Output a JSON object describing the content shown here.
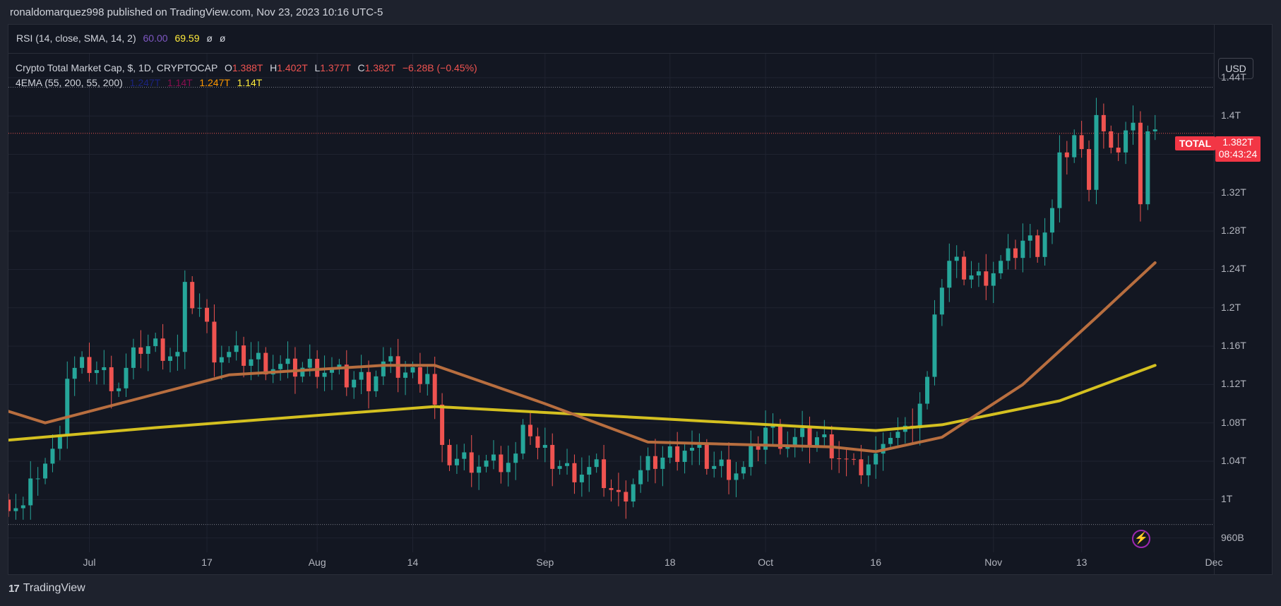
{
  "header": {
    "published_line": "ronaldomarquez998 published on TradingView.com, Nov 23, 2023 10:16 UTC-5"
  },
  "rsi": {
    "label": "RSI (14, close, SMA, 14, 2)",
    "value1": "60.00",
    "value2": "69.59",
    "empty1": "ø",
    "empty2": "ø",
    "color1": "#7e57c2",
    "color2": "#ffeb3b"
  },
  "legend": {
    "symbol": "Crypto Total Market Cap, $, 1D, CRYPTOCAP",
    "o_label": "O",
    "o_value": "1.388T",
    "h_label": "H",
    "h_value": "1.402T",
    "l_label": "L",
    "l_value": "1.377T",
    "c_label": "C",
    "c_value": "1.382T",
    "change": "−6.28B (−0.45%)",
    "ema_label": "4EMA (55, 200, 55, 200)",
    "ema_values": [
      "1.247T",
      "1.14T",
      "1.247T",
      "1.14T"
    ],
    "ema_colors": [
      "#1a237e",
      "#880e4f",
      "#ff9800",
      "#ffeb3b"
    ]
  },
  "price_axis": {
    "currency": "USD",
    "ticks": [
      "1.44T",
      "1.4T",
      "1.36T",
      "1.32T",
      "1.28T",
      "1.24T",
      "1.2T",
      "1.16T",
      "1.12T",
      "1.08T",
      "1.04T",
      "1T",
      "960B"
    ]
  },
  "time_axis": {
    "ticks": [
      "Jul",
      "17",
      "Aug",
      "14",
      "Sep",
      "18",
      "Oct",
      "16",
      "Nov",
      "13",
      "Dec"
    ]
  },
  "last_price": {
    "symbol": "TOTAL",
    "price": "1.382T",
    "countdown": "08:43:24"
  },
  "footer": {
    "brand": "TradingView"
  },
  "colors": {
    "up": "#26a69a",
    "down": "#ef5350",
    "ema55": "#b86e3f",
    "ema200": "#d4c020",
    "background": "#131722"
  },
  "chart_data": {
    "type": "candlestick",
    "title": "Crypto Total Market Cap, $, 1D, CRYPTOCAP",
    "x_range": [
      "2023-06-20",
      "2023-12-01"
    ],
    "y_range_T": [
      0.945,
      1.465
    ],
    "key_points_T": {
      "start_close": 1.0,
      "late_june_high": 1.18,
      "mid_july_high": 1.24,
      "aug_17_drop_low": 0.995,
      "sep_11_low": 0.98,
      "oct_24_breakout": 1.24,
      "nov_15_high": 1.43,
      "last_close": 1.382
    },
    "ema55_T": {
      "2023-06-20": 1.092,
      "2023-06-25": 1.08,
      "2023-07-10": 1.11,
      "2023-07-20": 1.13,
      "2023-08-10": 1.14,
      "2023-08-17": 1.14,
      "2023-09-01": 1.1,
      "2023-09-15": 1.06,
      "2023-10-10": 1.055,
      "2023-10-16": 1.05,
      "2023-10-25": 1.065,
      "2023-11-05": 1.12,
      "2023-11-15": 1.19,
      "2023-11-23": 1.247
    },
    "ema200_T": {
      "2023-06-20": 1.062,
      "2023-07-10": 1.075,
      "2023-08-10": 1.093,
      "2023-08-17": 1.097,
      "2023-09-15": 1.085,
      "2023-10-16": 1.072,
      "2023-10-25": 1.078,
      "2023-11-10": 1.103,
      "2023-11-23": 1.14
    },
    "last_price_line_T": 1.382,
    "range_lines_T": [
      1.43,
      0.974
    ]
  }
}
